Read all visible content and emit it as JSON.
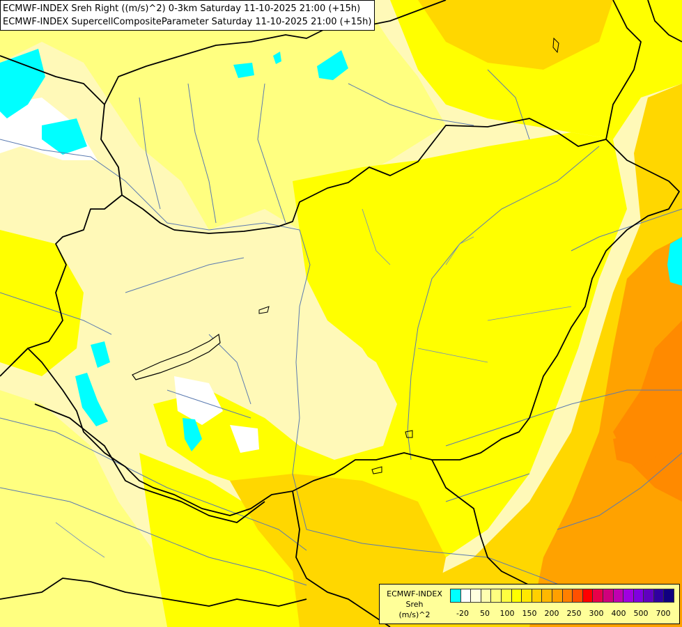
{
  "titles": {
    "line1": "ECMWF-INDEX Sreh Right ((m/s)^2) 0-3km Saturday 11-10-2025 21:00 (+15h)",
    "line2": "ECMWF-INDEX SupercellCompositeParameter Saturday 11-10-2025 21:00 (+15h)"
  },
  "legend": {
    "line1": "ECMWF-INDEX",
    "line2": "Sreh",
    "line3": "(m/s)^2",
    "colors": [
      "#00ffff",
      "#ffffff",
      "#ffffe0",
      "#ffffb0",
      "#ffff80",
      "#ffff40",
      "#ffff00",
      "#ffe800",
      "#ffd000",
      "#ffb800",
      "#ffa000",
      "#ff8000",
      "#ff5000",
      "#ff0000",
      "#e8004a",
      "#d0007c",
      "#c000b0",
      "#a000e0",
      "#8000e0",
      "#6000c0",
      "#3000a0",
      "#100080"
    ],
    "ticks": [
      "-20",
      "50",
      "100",
      "150",
      "200",
      "250",
      "300",
      "400",
      "500",
      "700"
    ]
  },
  "palette": {
    "pale": "#fff9b8",
    "light": "#ffff80",
    "yellow": "#ffff00",
    "gold": "#ffd700",
    "amber": "#ffbb00",
    "orange": "#ffa200",
    "deep_orange": "#ff8a00",
    "cyan": "#00ffff",
    "white": "#ffffff",
    "border": "#000000",
    "river": "#5a7ab0"
  }
}
